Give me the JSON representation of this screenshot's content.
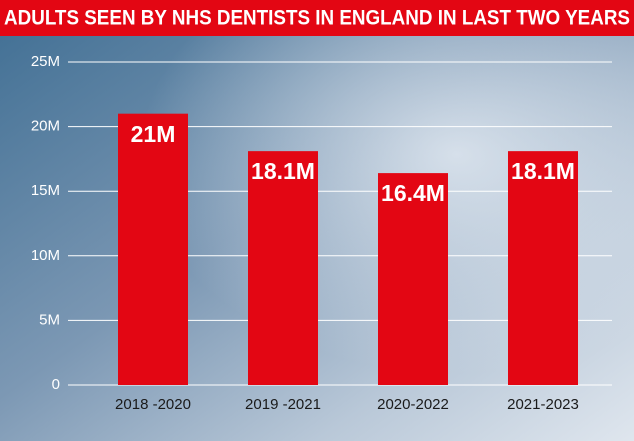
{
  "chart_data": {
    "type": "bar",
    "title": "ADULTS SEEN BY NHS DENTISTS IN ENGLAND IN LAST TWO YEARS",
    "categories": [
      "2018 -2020",
      "2019 -2021",
      "2020-2022",
      "2021-2023"
    ],
    "values": [
      21,
      18.1,
      16.4,
      18.1
    ],
    "value_labels": [
      "21M",
      "18.1M",
      "16.4M",
      "18.1M"
    ],
    "color": "#e30613",
    "ylim": [
      0,
      25
    ],
    "yticks": [
      0,
      {
        "value": 5,
        "label": "5M"
      },
      {
        "value": 10,
        "label": "10M"
      },
      {
        "value": 15,
        "label": "15M"
      },
      {
        "value": 20,
        "label": "20M"
      },
      {
        "value": 25,
        "label": "25M"
      }
    ],
    "grid": true
  }
}
